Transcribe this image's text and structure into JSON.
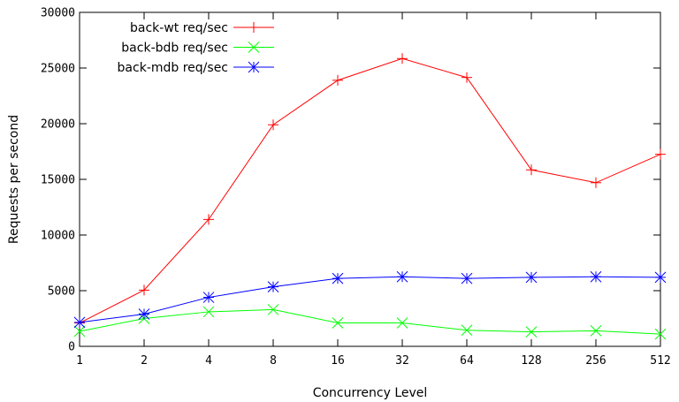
{
  "chart_data": {
    "type": "line",
    "title": "",
    "xlabel": "Concurrency Level",
    "ylabel": "Requests per second",
    "categories": [
      "1",
      "2",
      "4",
      "8",
      "16",
      "32",
      "64",
      "128",
      "256",
      "512"
    ],
    "x_scale": "log2",
    "ylim": [
      0,
      30000
    ],
    "yticks": [
      0,
      5000,
      10000,
      15000,
      20000,
      25000,
      30000
    ],
    "grid": false,
    "legend_position": "top-left",
    "series": [
      {
        "name": "back-wt req/sec",
        "color": "#ff0000",
        "marker": "plus",
        "values": [
          2100,
          5050,
          11400,
          19900,
          23900,
          25850,
          24150,
          15850,
          14700,
          17250
        ]
      },
      {
        "name": "back-bdb req/sec",
        "color": "#00ff00",
        "marker": "cross",
        "values": [
          1350,
          2500,
          3100,
          3300,
          2100,
          2100,
          1450,
          1300,
          1400,
          1100
        ]
      },
      {
        "name": "back-mdb req/sec",
        "color": "#0000ff",
        "marker": "star",
        "values": [
          2150,
          2900,
          4400,
          5350,
          6100,
          6250,
          6100,
          6200,
          6250,
          6200
        ]
      }
    ]
  }
}
